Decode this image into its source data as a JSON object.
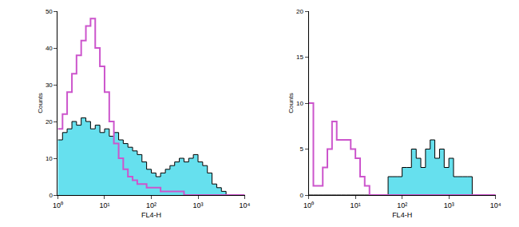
{
  "chart_data": [
    {
      "type": "histogram",
      "x_label": "FL4-H",
      "y_label": "Counts",
      "log": "x",
      "xlim": [
        1,
        10000
      ],
      "xticks": [
        {
          "value": 1,
          "label": "10⁰"
        },
        {
          "value": 10,
          "label": "10¹"
        },
        {
          "value": 100,
          "label": "10²"
        },
        {
          "value": 1000,
          "label": "10³"
        },
        {
          "value": 10000,
          "label": "10⁴"
        }
      ],
      "ylim": [
        0,
        50
      ],
      "yticks": [
        0,
        10,
        20,
        30,
        40,
        50
      ],
      "bins": [
        1,
        1.26,
        1.58,
        2.0,
        2.51,
        3.16,
        3.98,
        5.01,
        6.31,
        7.94,
        10,
        12.6,
        15.8,
        20,
        25.1,
        31.6,
        39.8,
        50.1,
        63.1,
        79.4,
        100,
        126,
        158,
        200,
        251,
        316,
        398,
        501,
        631,
        794,
        1000,
        1259,
        1585,
        1995,
        2512,
        3162,
        3981,
        5012,
        6310,
        7943,
        10000
      ],
      "series": [
        {
          "color": "#66e0ee",
          "marker": "filled",
          "values": [
            15,
            17,
            18,
            20,
            19,
            21,
            20,
            18,
            19,
            17,
            18,
            16,
            17,
            15,
            14,
            13,
            12,
            11,
            9,
            7,
            6,
            5,
            6,
            7,
            8,
            9,
            10,
            9,
            10,
            11,
            9,
            8,
            6,
            3,
            2,
            1,
            0,
            0,
            0,
            0
          ]
        },
        {
          "color": "#cc55cc",
          "marker": "outline",
          "values": [
            18,
            22,
            28,
            33,
            38,
            42,
            46,
            48,
            40,
            35,
            28,
            20,
            14,
            10,
            7,
            5,
            4,
            3,
            3,
            2,
            2,
            2,
            1,
            1,
            1,
            1,
            1,
            0,
            0,
            0,
            0,
            0,
            0,
            0,
            0,
            0,
            0,
            0,
            0,
            0
          ]
        }
      ]
    },
    {
      "type": "histogram",
      "x_label": "FL4-H",
      "y_label": "Counts",
      "log": "x",
      "xlim": [
        1,
        10000
      ],
      "xticks": [
        {
          "value": 1,
          "label": "10⁰"
        },
        {
          "value": 10,
          "label": "10¹"
        },
        {
          "value": 100,
          "label": "10²"
        },
        {
          "value": 1000,
          "label": "10³"
        },
        {
          "value": 10000,
          "label": "10⁴"
        }
      ],
      "ylim": [
        0,
        20
      ],
      "yticks": [
        0,
        5,
        10,
        15,
        20
      ],
      "bins": [
        1,
        1.26,
        1.58,
        2.0,
        2.51,
        3.16,
        3.98,
        5.01,
        6.31,
        7.94,
        10,
        12.6,
        15.8,
        20,
        25.1,
        31.6,
        39.8,
        50.1,
        63.1,
        79.4,
        100,
        126,
        158,
        200,
        251,
        316,
        398,
        501,
        631,
        794,
        1000,
        1259,
        1585,
        1995,
        2512,
        3162,
        3981,
        5012,
        6310,
        7943,
        10000
      ],
      "series": [
        {
          "color": "#66e0ee",
          "marker": "filled",
          "values": [
            0,
            0,
            0,
            0,
            0,
            0,
            0,
            0,
            0,
            0,
            0,
            0,
            0,
            0,
            0,
            0,
            0,
            2,
            2,
            2,
            3,
            3,
            5,
            4,
            3,
            5,
            6,
            4,
            5,
            3,
            4,
            2,
            2,
            2,
            2,
            0,
            0,
            0,
            0,
            0
          ]
        },
        {
          "color": "#cc55cc",
          "marker": "outline",
          "values": [
            10,
            1,
            1,
            3,
            5,
            8,
            6,
            6,
            6,
            5,
            4,
            2,
            1,
            0,
            0,
            0,
            0,
            0,
            0,
            0,
            0,
            0,
            0,
            0,
            0,
            0,
            0,
            0,
            0,
            0,
            0,
            0,
            0,
            0,
            0,
            0,
            0,
            0,
            0,
            0
          ]
        }
      ]
    }
  ]
}
